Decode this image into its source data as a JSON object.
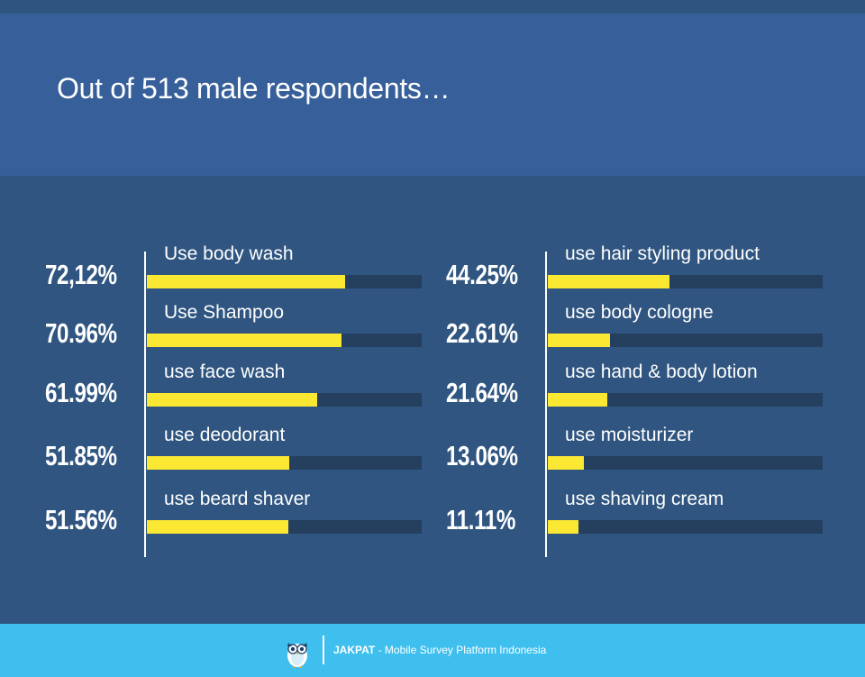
{
  "header": {
    "title": "Out of 513 male respondents…"
  },
  "chart_data": {
    "type": "bar",
    "orientation": "horizontal",
    "title": "Out of 513 male respondents…",
    "xlim": [
      0,
      100
    ],
    "columns": [
      {
        "items": [
          {
            "label": "Use body wash",
            "pct_text": "72,12%",
            "value": 72.12
          },
          {
            "label": "Use Shampoo",
            "pct_text": "70.96%",
            "value": 70.96
          },
          {
            "label": "use face wash",
            "pct_text": "61.99%",
            "value": 61.99
          },
          {
            "label": "use deodorant",
            "pct_text": "51.85%",
            "value": 51.85
          },
          {
            "label": "use beard shaver",
            "pct_text": "51.56%",
            "value": 51.56
          }
        ]
      },
      {
        "items": [
          {
            "label": "use hair styling product",
            "pct_text": "44.25%",
            "value": 44.25
          },
          {
            "label": "use body cologne",
            "pct_text": "22.61%",
            "value": 22.61
          },
          {
            "label": "use hand & body lotion",
            "pct_text": "21.64%",
            "value": 21.64
          },
          {
            "label": "use moisturizer",
            "pct_text": "13.06%",
            "value": 13.06
          },
          {
            "label": "use shaving cream",
            "pct_text": "11.11%",
            "value": 11.11
          }
        ]
      }
    ],
    "colors": {
      "fill": "#fbe832",
      "track": "#253f5f"
    }
  },
  "footer": {
    "brand": "JAKPAT",
    "tagline": " - Mobile Survey Platform Indonesia",
    "logo_icon": "owl-icon"
  }
}
